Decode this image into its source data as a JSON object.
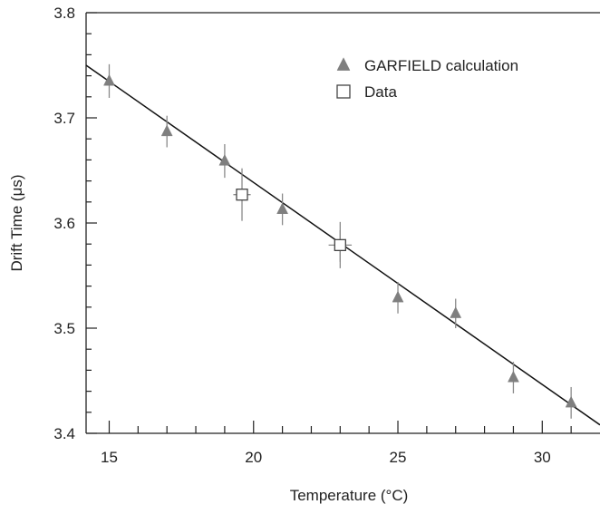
{
  "chart_data": {
    "type": "scatter",
    "xlabel": "Temperature (°C)",
    "ylabel": "Drift Time (μs)",
    "xlim": [
      14.2,
      32
    ],
    "ylim": [
      3.4,
      3.8
    ],
    "x_ticks": [
      15,
      20,
      25,
      30
    ],
    "x_tick_labels": [
      "15",
      "20",
      "25",
      "30"
    ],
    "y_ticks": [
      3.4,
      3.5,
      3.6,
      3.7,
      3.8
    ],
    "y_tick_labels": [
      "3.4",
      "3.5",
      "3.6",
      "3.7",
      "3.8"
    ],
    "legend_position": "top-right",
    "series": [
      {
        "name": "GARFIELD calculation",
        "marker": "filled-triangle",
        "color": "#7f7f7f",
        "x": [
          15,
          17,
          19,
          21,
          23,
          25,
          27,
          29,
          31
        ],
        "y": [
          3.735,
          3.687,
          3.659,
          3.613,
          3.578,
          3.529,
          3.514,
          3.453,
          3.429
        ],
        "y_err": [
          0.016,
          0.015,
          0.016,
          0.015,
          0.015,
          0.015,
          0.014,
          0.015,
          0.015
        ]
      },
      {
        "name": "Data",
        "marker": "open-square",
        "color": "#444444",
        "x": [
          19.6,
          23.0
        ],
        "y": [
          3.627,
          3.579
        ],
        "y_err": [
          0.025,
          0.022
        ],
        "x_err": [
          0.3,
          0.4
        ]
      }
    ],
    "fit_line": {
      "type": "linear",
      "x": [
        14.2,
        32
      ],
      "y": [
        3.75,
        3.408
      ]
    }
  }
}
